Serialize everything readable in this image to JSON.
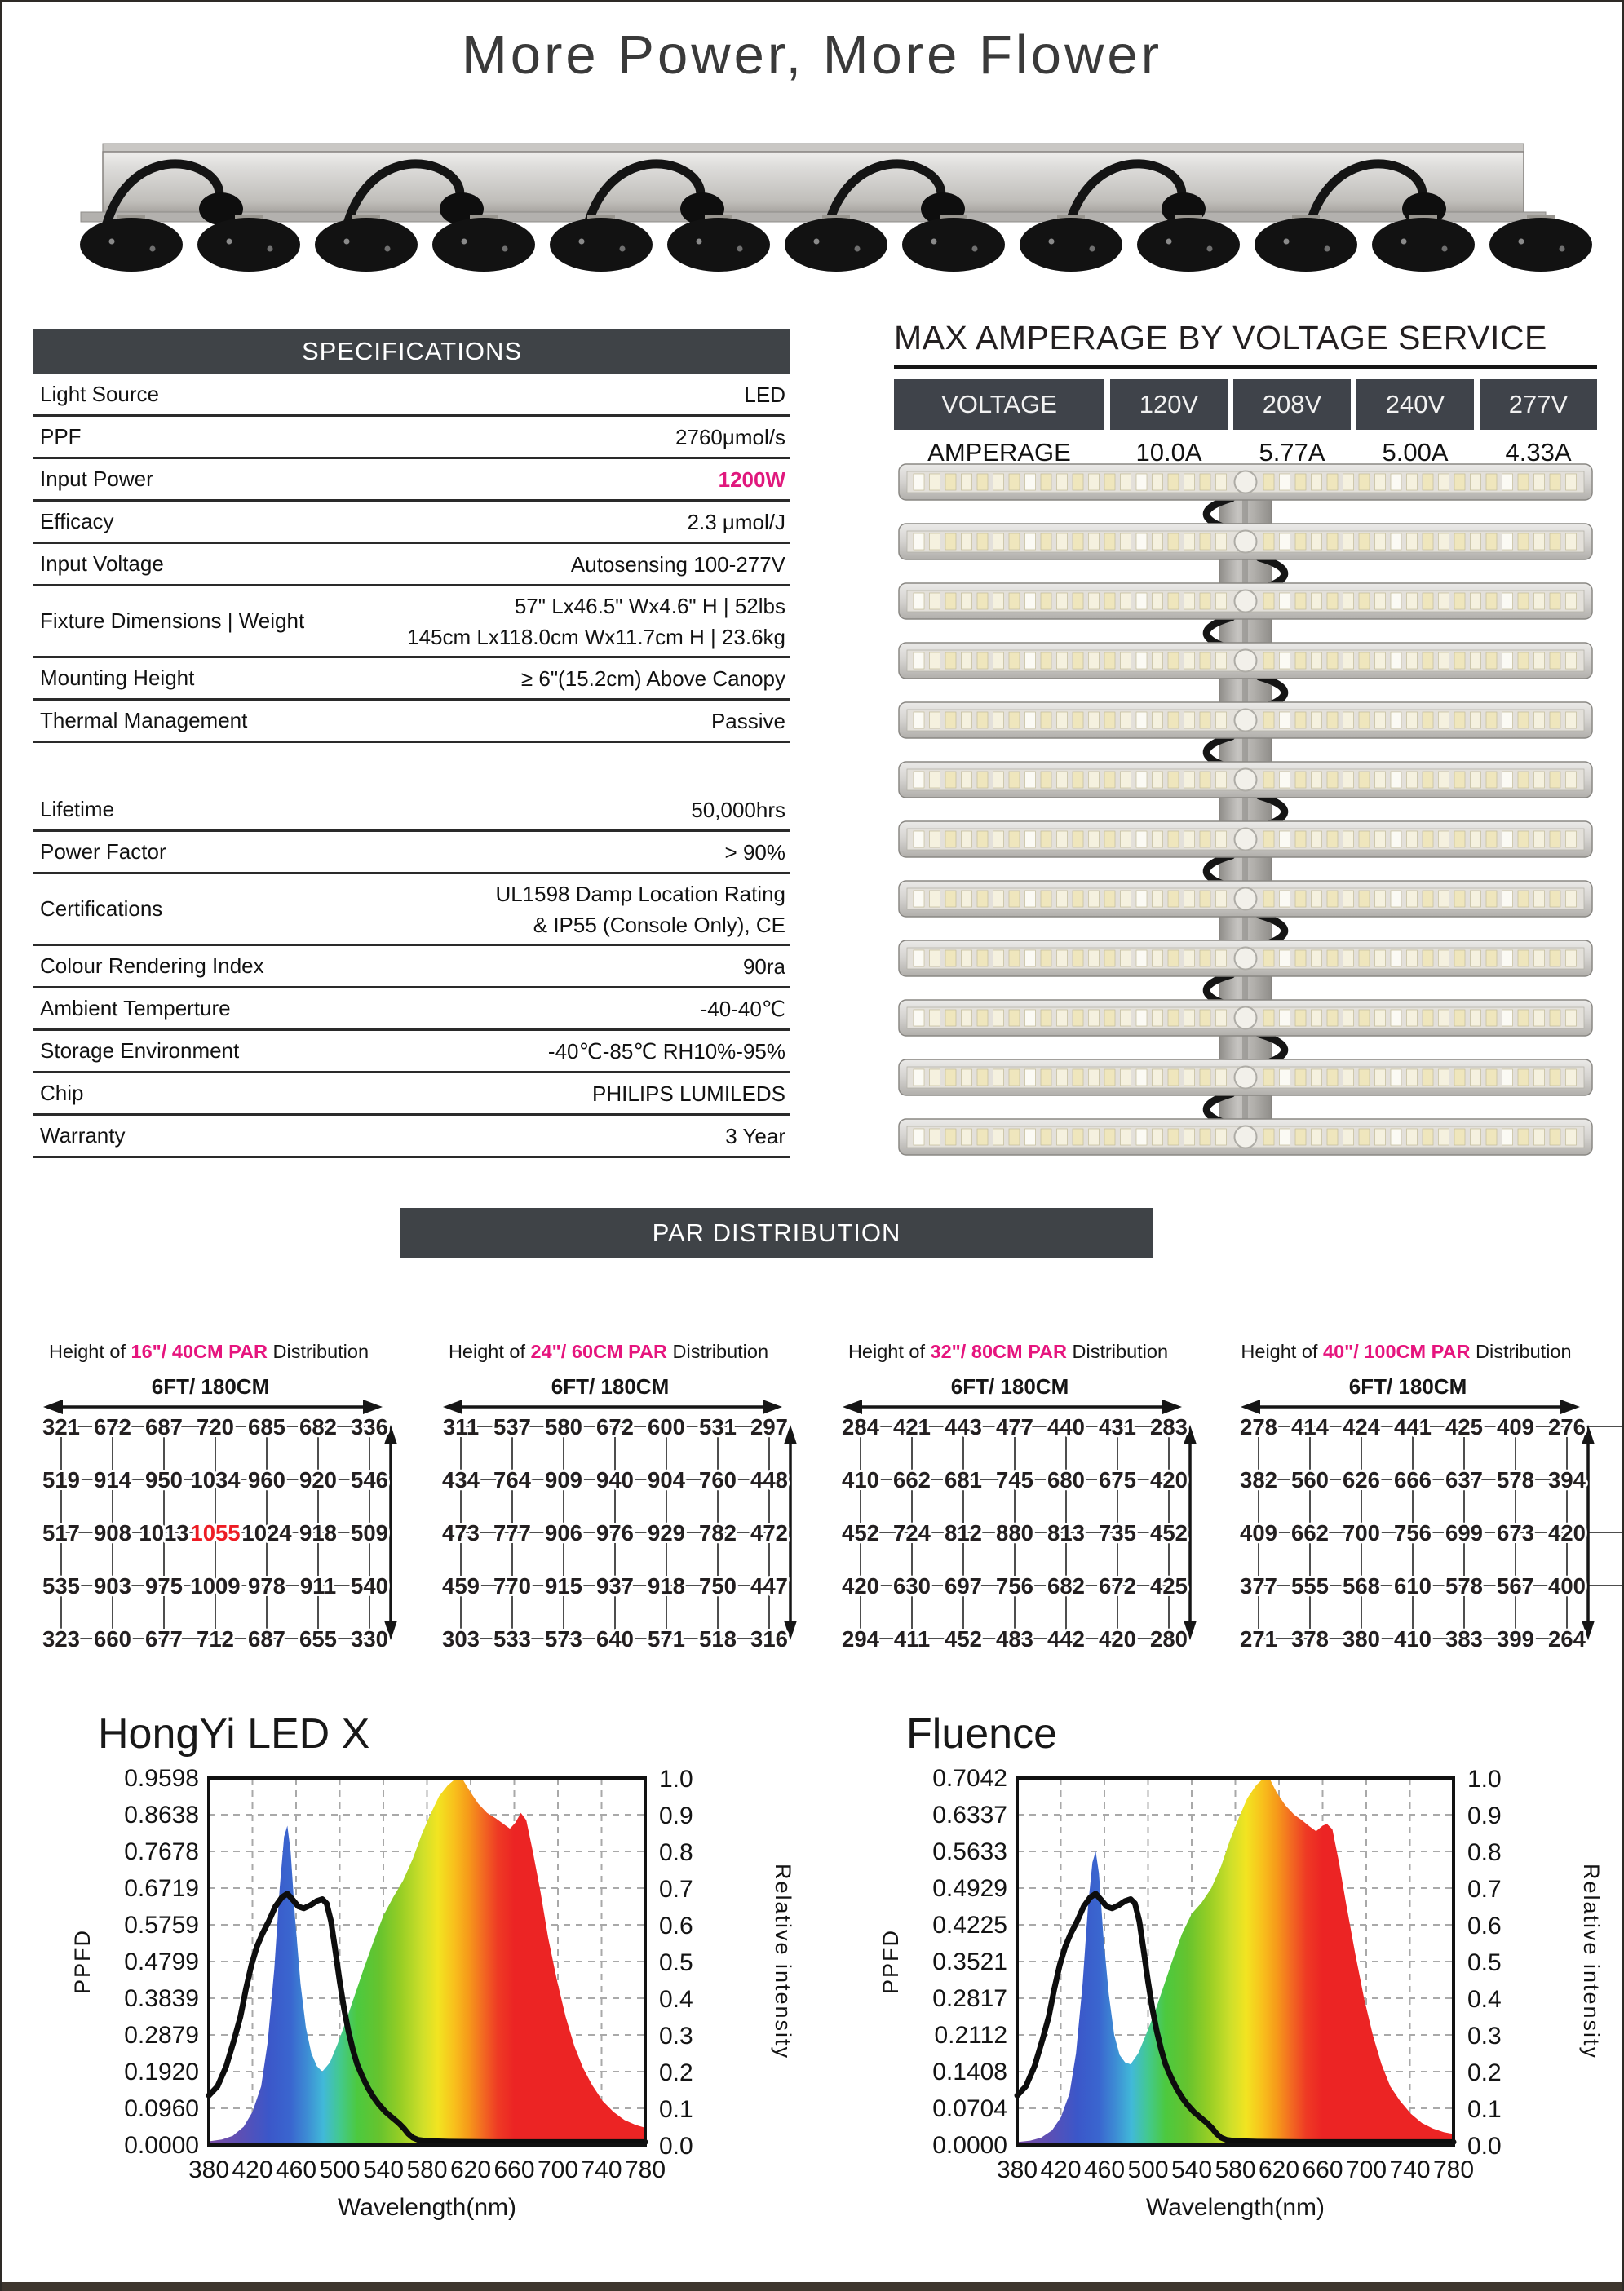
{
  "page": {
    "title": "More Power, More Flower"
  },
  "colors": {
    "header_bg": "#3f4347",
    "accent_pink": "#e6157e",
    "highlight_red": "#ed1c24",
    "title_gray": "#3a3a3a"
  },
  "specifications": {
    "header": "SPECIFICATIONS",
    "rows": [
      {
        "label": "Light Source",
        "value_lines": [
          "LED"
        ]
      },
      {
        "label": "PPF",
        "value_lines": [
          "2760μmol/s"
        ]
      },
      {
        "label": "Input Power",
        "value_lines": [
          "1200W"
        ],
        "highlight": true
      },
      {
        "label": "Efficacy",
        "value_lines": [
          "2.3 μmol/J"
        ]
      },
      {
        "label": "Input Voltage",
        "value_lines": [
          "Autosensing 100-277V"
        ]
      },
      {
        "label": "Fixture Dimensions | Weight",
        "value_lines": [
          "57\" Lx46.5\" Wx4.6\" H | 52lbs",
          "145cm Lx118.0cm Wx11.7cm H | 23.6kg"
        ]
      },
      {
        "label": "Mounting Height",
        "value_lines": [
          "≥ 6\"(15.2cm) Above Canopy"
        ]
      },
      {
        "label": "Thermal Management",
        "value_lines": [
          "Passive"
        ]
      },
      {
        "spacer": true
      },
      {
        "label": "Lifetime",
        "value_lines": [
          "50,000hrs"
        ]
      },
      {
        "label": "Power Factor",
        "value_lines": [
          "> 90%"
        ]
      },
      {
        "label": "Certifications",
        "value_lines": [
          "UL1598 Damp Location Rating",
          "& IP55 (Console Only), CE"
        ]
      },
      {
        "label": "Colour Rendering Index",
        "value_lines": [
          "90ra"
        ]
      },
      {
        "label": "Ambient Temperture",
        "value_lines": [
          "-40-40℃"
        ]
      },
      {
        "label": "Storage Environment",
        "value_lines": [
          "-40℃-85℃  RH10%-95%"
        ]
      },
      {
        "label": "Chip",
        "value_lines": [
          "PHILIPS LUMILEDS"
        ]
      },
      {
        "label": "Warranty",
        "value_lines": [
          "3 Year"
        ]
      }
    ]
  },
  "amperage": {
    "title": "MAX AMPERAGE BY VOLTAGE SERVICE",
    "header": [
      "VOLTAGE",
      "120V",
      "208V",
      "240V",
      "277V"
    ],
    "row_label": "AMPERAGE",
    "values": [
      "10.0A",
      "5.77A",
      "5.00A",
      "4.33A"
    ]
  },
  "fixtures": {
    "side_view_feet": 13,
    "side_view_hooks": 6,
    "top_view_bars": 12
  },
  "par": {
    "banner": "PAR DISTRIBUTION",
    "title_prefix": "Height of ",
    "title_suffix": " Distribution",
    "width_label": "6FT/ 180CM",
    "panels": [
      {
        "height_label": "16\"/ 40CM PAR",
        "values": [
          [
            321,
            672,
            687,
            720,
            685,
            682,
            336
          ],
          [
            519,
            914,
            950,
            1034,
            960,
            920,
            546
          ],
          [
            517,
            908,
            1013,
            1055,
            1024,
            918,
            509
          ],
          [
            535,
            903,
            975,
            1009,
            978,
            911,
            540
          ],
          [
            323,
            660,
            677,
            712,
            687,
            655,
            330
          ]
        ],
        "highlight": [
          2,
          3
        ]
      },
      {
        "height_label": "24\"/ 60CM PAR",
        "values": [
          [
            311,
            537,
            580,
            672,
            600,
            531,
            297
          ],
          [
            434,
            764,
            909,
            940,
            904,
            760,
            448
          ],
          [
            473,
            777,
            906,
            976,
            929,
            782,
            472
          ],
          [
            459,
            770,
            915,
            937,
            918,
            750,
            447
          ],
          [
            303,
            533,
            573,
            640,
            571,
            518,
            316
          ]
        ]
      },
      {
        "height_label": "32\"/ 80CM PAR",
        "values": [
          [
            284,
            421,
            443,
            477,
            440,
            431,
            283
          ],
          [
            410,
            662,
            681,
            745,
            680,
            675,
            420
          ],
          [
            452,
            724,
            812,
            880,
            813,
            735,
            452
          ],
          [
            420,
            630,
            697,
            756,
            682,
            672,
            425
          ],
          [
            294,
            411,
            452,
            483,
            442,
            420,
            280
          ]
        ]
      },
      {
        "height_label": "40\"/ 100CM PAR",
        "values": [
          [
            278,
            414,
            424,
            441,
            425,
            409,
            276
          ],
          [
            382,
            560,
            626,
            666,
            637,
            578,
            394
          ],
          [
            409,
            662,
            700,
            756,
            699,
            673,
            420
          ],
          [
            377,
            555,
            568,
            610,
            578,
            567,
            400
          ],
          [
            271,
            378,
            380,
            410,
            383,
            399,
            264
          ]
        ],
        "extend_right_rows": [
          0,
          2,
          3
        ]
      }
    ]
  },
  "chart_data": [
    {
      "type": "area",
      "title": "HongYi LED X",
      "xlabel": "Wavelength(nm)",
      "ylabel_left": "PPFD",
      "ylabel_right": "Relative intensity",
      "x_range": [
        380,
        780
      ],
      "x_ticks": [
        "380",
        "420",
        "460",
        "500",
        "540",
        "580",
        "620",
        "660",
        "700",
        "740",
        "780"
      ],
      "left_axis_ticks": [
        "0.9598",
        "0.8638",
        "0.7678",
        "0.6719",
        "0.5759",
        "0.4799",
        "0.3839",
        "0.2879",
        "0.1920",
        "0.0960",
        "0.0000"
      ],
      "right_axis_ticks": [
        "1.0",
        "0.9",
        "0.8",
        "0.7",
        "0.6",
        "0.5",
        "0.4",
        "0.3",
        "0.2",
        "0.1",
        "0.0"
      ],
      "grid": "dashed",
      "spectrum": [
        [
          380,
          0.01
        ],
        [
          392,
          0.015
        ],
        [
          402,
          0.025
        ],
        [
          412,
          0.05
        ],
        [
          420,
          0.09
        ],
        [
          428,
          0.16
        ],
        [
          434,
          0.28
        ],
        [
          440,
          0.48
        ],
        [
          445,
          0.7
        ],
        [
          449,
          0.84
        ],
        [
          452,
          0.87
        ],
        [
          455,
          0.8
        ],
        [
          459,
          0.62
        ],
        [
          464,
          0.44
        ],
        [
          469,
          0.32
        ],
        [
          474,
          0.25
        ],
        [
          479,
          0.215
        ],
        [
          484,
          0.2
        ],
        [
          491,
          0.225
        ],
        [
          498,
          0.275
        ],
        [
          506,
          0.34
        ],
        [
          514,
          0.41
        ],
        [
          522,
          0.48
        ],
        [
          531,
          0.555
        ],
        [
          540,
          0.625
        ],
        [
          549,
          0.675
        ],
        [
          558,
          0.72
        ],
        [
          567,
          0.78
        ],
        [
          575,
          0.845
        ],
        [
          583,
          0.9
        ],
        [
          591,
          0.95
        ],
        [
          599,
          0.98
        ],
        [
          607,
          1.0
        ],
        [
          613,
          0.995
        ],
        [
          619,
          0.965
        ],
        [
          627,
          0.93
        ],
        [
          635,
          0.905
        ],
        [
          643,
          0.89
        ],
        [
          650,
          0.875
        ],
        [
          656,
          0.862
        ],
        [
          661,
          0.878
        ],
        [
          666,
          0.905
        ],
        [
          671,
          0.885
        ],
        [
          677,
          0.8
        ],
        [
          684,
          0.69
        ],
        [
          691,
          0.565
        ],
        [
          699,
          0.45
        ],
        [
          707,
          0.35
        ],
        [
          715,
          0.27
        ],
        [
          723,
          0.21
        ],
        [
          731,
          0.165
        ],
        [
          741,
          0.12
        ],
        [
          751,
          0.09
        ],
        [
          761,
          0.068
        ],
        [
          771,
          0.055
        ],
        [
          780,
          0.047
        ]
      ],
      "overlay_curve": [
        [
          380,
          0.135
        ],
        [
          388,
          0.16
        ],
        [
          396,
          0.215
        ],
        [
          403,
          0.285
        ],
        [
          409,
          0.35
        ],
        [
          414,
          0.425
        ],
        [
          419,
          0.49
        ],
        [
          424,
          0.54
        ],
        [
          429,
          0.575
        ],
        [
          435,
          0.61
        ],
        [
          441,
          0.65
        ],
        [
          447,
          0.675
        ],
        [
          452,
          0.685
        ],
        [
          457,
          0.668
        ],
        [
          462,
          0.65
        ],
        [
          467,
          0.645
        ],
        [
          473,
          0.653
        ],
        [
          479,
          0.665
        ],
        [
          484,
          0.67
        ],
        [
          488,
          0.658
        ],
        [
          492,
          0.61
        ],
        [
          496,
          0.53
        ],
        [
          500,
          0.445
        ],
        [
          504,
          0.37
        ],
        [
          508,
          0.31
        ],
        [
          512,
          0.26
        ],
        [
          516,
          0.22
        ],
        [
          521,
          0.185
        ],
        [
          526,
          0.155
        ],
        [
          531,
          0.13
        ],
        [
          536,
          0.11
        ],
        [
          542,
          0.09
        ],
        [
          548,
          0.075
        ],
        [
          554,
          0.06
        ],
        [
          559,
          0.045
        ],
        [
          563,
          0.03
        ],
        [
          567,
          0.02
        ],
        [
          572,
          0.014
        ],
        [
          580,
          0.011
        ],
        [
          600,
          0.009
        ],
        [
          640,
          0.008
        ],
        [
          700,
          0.008
        ],
        [
          780,
          0.008
        ]
      ]
    },
    {
      "type": "area",
      "title": "Fluence",
      "xlabel": "Wavelength(nm)",
      "ylabel_left": "PPFD",
      "ylabel_right": "Relative intensity",
      "x_range": [
        380,
        780
      ],
      "x_ticks": [
        "380",
        "420",
        "460",
        "500",
        "540",
        "580",
        "620",
        "660",
        "700",
        "740",
        "780"
      ],
      "left_axis_ticks": [
        "0.7042",
        "0.6337",
        "0.5633",
        "0.4929",
        "0.4225",
        "0.3521",
        "0.2817",
        "0.2112",
        "0.1408",
        "0.0704",
        "0.0000"
      ],
      "right_axis_ticks": [
        "1.0",
        "0.9",
        "0.8",
        "0.7",
        "0.6",
        "0.5",
        "0.4",
        "0.3",
        "0.2",
        "0.1",
        "0.0"
      ],
      "grid": "dashed",
      "spectrum": [
        [
          380,
          0.008
        ],
        [
          392,
          0.012
        ],
        [
          402,
          0.02
        ],
        [
          412,
          0.04
        ],
        [
          420,
          0.075
        ],
        [
          428,
          0.14
        ],
        [
          434,
          0.25
        ],
        [
          440,
          0.44
        ],
        [
          445,
          0.65
        ],
        [
          449,
          0.77
        ],
        [
          452,
          0.8
        ],
        [
          455,
          0.74
        ],
        [
          459,
          0.57
        ],
        [
          464,
          0.41
        ],
        [
          469,
          0.3
        ],
        [
          474,
          0.245
        ],
        [
          479,
          0.225
        ],
        [
          484,
          0.22
        ],
        [
          491,
          0.25
        ],
        [
          498,
          0.3
        ],
        [
          506,
          0.36
        ],
        [
          514,
          0.43
        ],
        [
          522,
          0.5
        ],
        [
          531,
          0.575
        ],
        [
          540,
          0.63
        ],
        [
          549,
          0.66
        ],
        [
          558,
          0.7
        ],
        [
          567,
          0.76
        ],
        [
          575,
          0.83
        ],
        [
          583,
          0.89
        ],
        [
          591,
          0.945
        ],
        [
          599,
          0.98
        ],
        [
          606,
          1.0
        ],
        [
          612,
          0.995
        ],
        [
          618,
          0.96
        ],
        [
          626,
          0.925
        ],
        [
          634,
          0.9
        ],
        [
          641,
          0.885
        ],
        [
          648,
          0.868
        ],
        [
          654,
          0.855
        ],
        [
          660,
          0.87
        ],
        [
          664,
          0.875
        ],
        [
          669,
          0.86
        ],
        [
          675,
          0.77
        ],
        [
          682,
          0.65
        ],
        [
          690,
          0.52
        ],
        [
          698,
          0.4
        ],
        [
          706,
          0.3
        ],
        [
          714,
          0.22
        ],
        [
          722,
          0.16
        ],
        [
          731,
          0.12
        ],
        [
          741,
          0.085
        ],
        [
          751,
          0.06
        ],
        [
          761,
          0.045
        ],
        [
          771,
          0.035
        ],
        [
          780,
          0.03
        ]
      ],
      "overlay_curve": [
        [
          380,
          0.135
        ],
        [
          388,
          0.16
        ],
        [
          396,
          0.215
        ],
        [
          403,
          0.285
        ],
        [
          409,
          0.35
        ],
        [
          414,
          0.425
        ],
        [
          419,
          0.49
        ],
        [
          424,
          0.54
        ],
        [
          429,
          0.575
        ],
        [
          435,
          0.61
        ],
        [
          441,
          0.65
        ],
        [
          447,
          0.675
        ],
        [
          452,
          0.685
        ],
        [
          457,
          0.668
        ],
        [
          462,
          0.65
        ],
        [
          467,
          0.645
        ],
        [
          473,
          0.653
        ],
        [
          479,
          0.665
        ],
        [
          484,
          0.67
        ],
        [
          488,
          0.658
        ],
        [
          492,
          0.61
        ],
        [
          496,
          0.53
        ],
        [
          500,
          0.445
        ],
        [
          504,
          0.37
        ],
        [
          508,
          0.31
        ],
        [
          512,
          0.26
        ],
        [
          516,
          0.22
        ],
        [
          521,
          0.185
        ],
        [
          526,
          0.155
        ],
        [
          531,
          0.13
        ],
        [
          536,
          0.11
        ],
        [
          542,
          0.09
        ],
        [
          548,
          0.075
        ],
        [
          554,
          0.06
        ],
        [
          559,
          0.045
        ],
        [
          563,
          0.03
        ],
        [
          567,
          0.02
        ],
        [
          572,
          0.014
        ],
        [
          580,
          0.011
        ],
        [
          600,
          0.009
        ],
        [
          640,
          0.008
        ],
        [
          700,
          0.008
        ],
        [
          780,
          0.008
        ]
      ]
    }
  ]
}
